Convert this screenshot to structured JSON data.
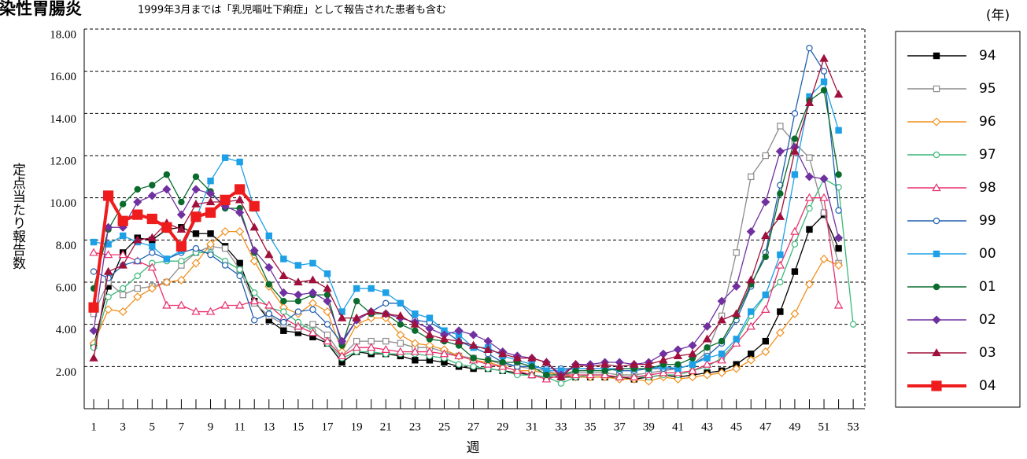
{
  "chart_data": {
    "type": "line",
    "title": "感染性胃腸炎",
    "subtitle": "1999年3月までは「乳児嘔吐下痢症」として報告された患者も含む",
    "y_label": "定点当たり報告数",
    "x_label": "週",
    "legend_title": "(年)",
    "legend": "right",
    "grid": true,
    "x": [
      1,
      2,
      3,
      4,
      5,
      6,
      7,
      8,
      9,
      10,
      11,
      12,
      13,
      14,
      15,
      16,
      17,
      18,
      19,
      20,
      21,
      22,
      23,
      24,
      25,
      26,
      27,
      28,
      29,
      30,
      31,
      32,
      33,
      34,
      35,
      36,
      37,
      38,
      39,
      40,
      41,
      42,
      43,
      44,
      45,
      46,
      47,
      48,
      49,
      50,
      51,
      52,
      53
    ],
    "xlim": [
      0.35,
      53.8
    ],
    "xticks": [
      1,
      3,
      5,
      7,
      9,
      11,
      13,
      15,
      17,
      19,
      21,
      23,
      25,
      27,
      29,
      31,
      33,
      35,
      37,
      39,
      41,
      43,
      45,
      47,
      49,
      51,
      53
    ],
    "ylim": [
      0,
      18
    ],
    "yticks": [
      {
        "value": 2,
        "label": "2.00"
      },
      {
        "value": 4,
        "label": "4.00"
      },
      {
        "value": 6,
        "label": "6.00"
      },
      {
        "value": 8,
        "label": "8.00"
      },
      {
        "value": 10,
        "label": "10.00"
      },
      {
        "value": 12,
        "label": "12.00"
      },
      {
        "value": 14,
        "label": "14.00"
      },
      {
        "value": 16,
        "label": "16.00"
      },
      {
        "value": 18,
        "label": "18.00"
      }
    ],
    "series": [
      {
        "name": "94",
        "color": "#000000",
        "marker": "square",
        "filled": true,
        "values": [
          3.0,
          5.8,
          7.4,
          8.1,
          8.0,
          8.5,
          8.6,
          8.3,
          8.3,
          7.7,
          6.9,
          5.1,
          4.2,
          3.7,
          3.6,
          3.4,
          3.1,
          2.2,
          2.7,
          2.6,
          2.6,
          2.5,
          2.3,
          2.3,
          2.2,
          2.0,
          1.9,
          1.9,
          1.8,
          1.7,
          1.6,
          1.5,
          1.5,
          1.5,
          1.5,
          1.5,
          1.5,
          1.4,
          1.5,
          1.6,
          1.5,
          1.6,
          1.7,
          1.8,
          2.1,
          2.6,
          3.2,
          4.6,
          6.5,
          8.5,
          9.2,
          7.6,
          null
        ]
      },
      {
        "name": "95",
        "color": "#8c8c8c",
        "marker": "square",
        "filled": false,
        "values": [
          4.5,
          6.0,
          5.4,
          5.7,
          5.8,
          6.0,
          6.8,
          7.4,
          7.7,
          7.6,
          6.6,
          5.0,
          4.4,
          4.0,
          3.8,
          4.0,
          3.5,
          2.5,
          3.2,
          3.2,
          3.2,
          3.1,
          2.9,
          2.9,
          2.7,
          2.5,
          2.4,
          2.3,
          2.1,
          2.0,
          1.9,
          1.8,
          1.6,
          1.7,
          1.7,
          1.7,
          1.6,
          1.6,
          1.7,
          1.8,
          1.9,
          2.1,
          2.7,
          4.4,
          7.4,
          11.0,
          12.0,
          13.4,
          12.6,
          11.9,
          9.3,
          6.9,
          null
        ]
      },
      {
        "name": "96",
        "color": "#f0901e",
        "marker": "diamond",
        "filled": false,
        "values": [
          3.1,
          4.7,
          4.6,
          5.3,
          5.7,
          6.0,
          6.1,
          6.9,
          7.8,
          8.4,
          8.4,
          7.0,
          5.8,
          4.8,
          4.5,
          5.0,
          4.6,
          2.7,
          4.0,
          4.3,
          4.3,
          3.5,
          3.1,
          3.0,
          2.8,
          2.5,
          2.3,
          2.2,
          2.0,
          1.8,
          1.8,
          1.7,
          1.6,
          1.5,
          1.5,
          1.5,
          1.4,
          1.4,
          1.3,
          1.5,
          1.4,
          1.5,
          1.6,
          1.7,
          1.9,
          2.3,
          2.7,
          3.6,
          4.5,
          5.9,
          7.1,
          6.8,
          null
        ]
      },
      {
        "name": "97",
        "color": "#3cb878",
        "marker": "circle",
        "filled": false,
        "values": [
          2.9,
          5.3,
          5.7,
          6.3,
          6.9,
          7.0,
          7.0,
          7.4,
          7.4,
          7.0,
          6.6,
          5.5,
          4.8,
          4.6,
          4.1,
          3.7,
          3.1,
          2.4,
          2.7,
          2.7,
          2.6,
          2.6,
          2.6,
          2.5,
          2.4,
          2.1,
          2.0,
          1.9,
          1.8,
          1.6,
          1.6,
          1.5,
          1.2,
          1.5,
          1.6,
          1.6,
          1.5,
          1.5,
          1.5,
          1.6,
          1.6,
          1.8,
          2.0,
          2.4,
          3.2,
          4.4,
          5.4,
          6.0,
          7.8,
          9.5,
          10.9,
          10.5,
          4.0
        ]
      },
      {
        "name": "98",
        "color": "#e8306e",
        "marker": "triangle",
        "filled": false,
        "values": [
          7.4,
          7.3,
          7.3,
          7.0,
          6.7,
          4.9,
          4.9,
          4.6,
          4.6,
          4.9,
          4.9,
          5.1,
          4.9,
          4.3,
          3.9,
          3.6,
          3.2,
          2.5,
          2.9,
          2.9,
          2.8,
          2.7,
          2.7,
          2.7,
          2.6,
          2.5,
          2.3,
          2.1,
          2.0,
          1.8,
          1.6,
          1.4,
          1.6,
          1.6,
          1.6,
          1.6,
          1.5,
          1.5,
          1.6,
          1.7,
          1.7,
          1.8,
          2.1,
          2.3,
          3.1,
          3.9,
          4.7,
          6.8,
          8.4,
          10.0,
          10.0,
          4.9,
          null
        ]
      },
      {
        "name": "99",
        "color": "#1f5fb0",
        "marker": "circle",
        "filled": false,
        "values": [
          6.5,
          6.2,
          6.8,
          7.0,
          7.4,
          7.1,
          7.4,
          7.6,
          7.3,
          6.8,
          6.3,
          4.2,
          4.5,
          4.1,
          4.6,
          4.7,
          4.0,
          3.1,
          4.2,
          4.6,
          5.0,
          5.0,
          4.2,
          4.1,
          3.7,
          3.2,
          2.9,
          2.6,
          2.2,
          2.0,
          2.0,
          1.9,
          1.9,
          1.9,
          1.9,
          1.9,
          1.8,
          1.8,
          1.9,
          1.9,
          1.9,
          2.1,
          2.5,
          3.1,
          4.2,
          5.8,
          7.4,
          10.6,
          14.0,
          17.1,
          16.0,
          9.4,
          null
        ]
      },
      {
        "name": "00",
        "color": "#1ea0e6",
        "marker": "square",
        "filled": true,
        "values": [
          7.9,
          7.8,
          8.2,
          7.9,
          7.7,
          7.1,
          7.5,
          9.0,
          10.8,
          11.9,
          11.7,
          9.5,
          8.2,
          7.1,
          6.8,
          6.9,
          6.4,
          4.6,
          5.7,
          5.7,
          5.5,
          5.0,
          4.5,
          4.3,
          3.7,
          3.5,
          2.9,
          2.9,
          2.5,
          2.3,
          2.1,
          1.8,
          1.8,
          1.9,
          1.9,
          1.9,
          1.9,
          1.9,
          1.9,
          2.0,
          1.9,
          2.1,
          2.4,
          2.6,
          3.3,
          4.6,
          5.4,
          7.3,
          11.1,
          14.8,
          15.5,
          13.2,
          null
        ]
      },
      {
        "name": "01",
        "color": "#0a6b2c",
        "marker": "circle",
        "filled": true,
        "values": [
          5.7,
          8.5,
          9.7,
          10.4,
          10.6,
          11.1,
          9.8,
          11.0,
          10.3,
          9.5,
          9.5,
          7.4,
          5.9,
          5.1,
          5.1,
          5.4,
          5.4,
          3.0,
          5.1,
          4.5,
          4.5,
          4.0,
          3.7,
          3.3,
          3.2,
          3.0,
          2.4,
          2.3,
          2.2,
          2.2,
          2.0,
          1.6,
          1.6,
          1.8,
          1.8,
          1.8,
          1.9,
          1.9,
          1.9,
          2.1,
          2.1,
          2.4,
          2.9,
          3.2,
          4.4,
          5.9,
          7.2,
          10.2,
          12.8,
          14.6,
          15.1,
          11.1,
          null
        ]
      },
      {
        "name": "02",
        "color": "#7030a0",
        "marker": "diamond",
        "filled": true,
        "values": [
          3.7,
          8.6,
          8.6,
          9.8,
          10.1,
          10.4,
          9.2,
          10.4,
          10.2,
          9.6,
          9.3,
          7.5,
          6.7,
          5.5,
          5.4,
          5.5,
          5.1,
          3.2,
          4.2,
          4.6,
          4.5,
          4.3,
          4.1,
          3.8,
          3.5,
          3.7,
          3.5,
          3.2,
          2.7,
          2.5,
          2.4,
          2.2,
          1.6,
          2.1,
          2.1,
          2.2,
          2.2,
          2.1,
          2.2,
          2.6,
          2.8,
          3.0,
          3.9,
          5.1,
          5.8,
          8.4,
          9.8,
          12.2,
          12.4,
          11.0,
          10.9,
          8.1,
          null
        ]
      },
      {
        "name": "03",
        "color": "#a0103c",
        "marker": "triangle",
        "filled": true,
        "values": [
          2.4,
          6.5,
          6.8,
          8.0,
          8.1,
          8.8,
          8.5,
          9.7,
          9.8,
          9.8,
          9.9,
          8.6,
          7.3,
          6.3,
          6.0,
          6.1,
          5.7,
          4.3,
          4.3,
          4.6,
          4.5,
          4.4,
          4.0,
          3.5,
          3.3,
          3.2,
          3.0,
          2.8,
          2.6,
          2.4,
          2.4,
          2.2,
          1.5,
          2.1,
          2.0,
          2.1,
          2.0,
          2.1,
          2.1,
          2.3,
          2.5,
          2.6,
          3.3,
          4.2,
          4.5,
          6.1,
          8.2,
          9.1,
          12.2,
          14.5,
          16.6,
          14.9,
          null
        ]
      },
      {
        "name": "04",
        "color": "#ee1c1c",
        "marker": "square",
        "filled": true,
        "bold": true,
        "values": [
          4.8,
          10.1,
          8.9,
          9.2,
          9.0,
          8.6,
          7.7,
          9.1,
          9.3,
          9.9,
          10.4,
          9.6,
          null,
          null,
          null,
          null,
          null,
          null,
          null,
          null,
          null,
          null,
          null,
          null,
          null,
          null,
          null,
          null,
          null,
          null,
          null,
          null,
          null,
          null,
          null,
          null,
          null,
          null,
          null,
          null,
          null,
          null,
          null,
          null,
          null,
          null,
          null,
          null,
          null,
          null,
          null,
          null,
          null
        ]
      }
    ]
  }
}
